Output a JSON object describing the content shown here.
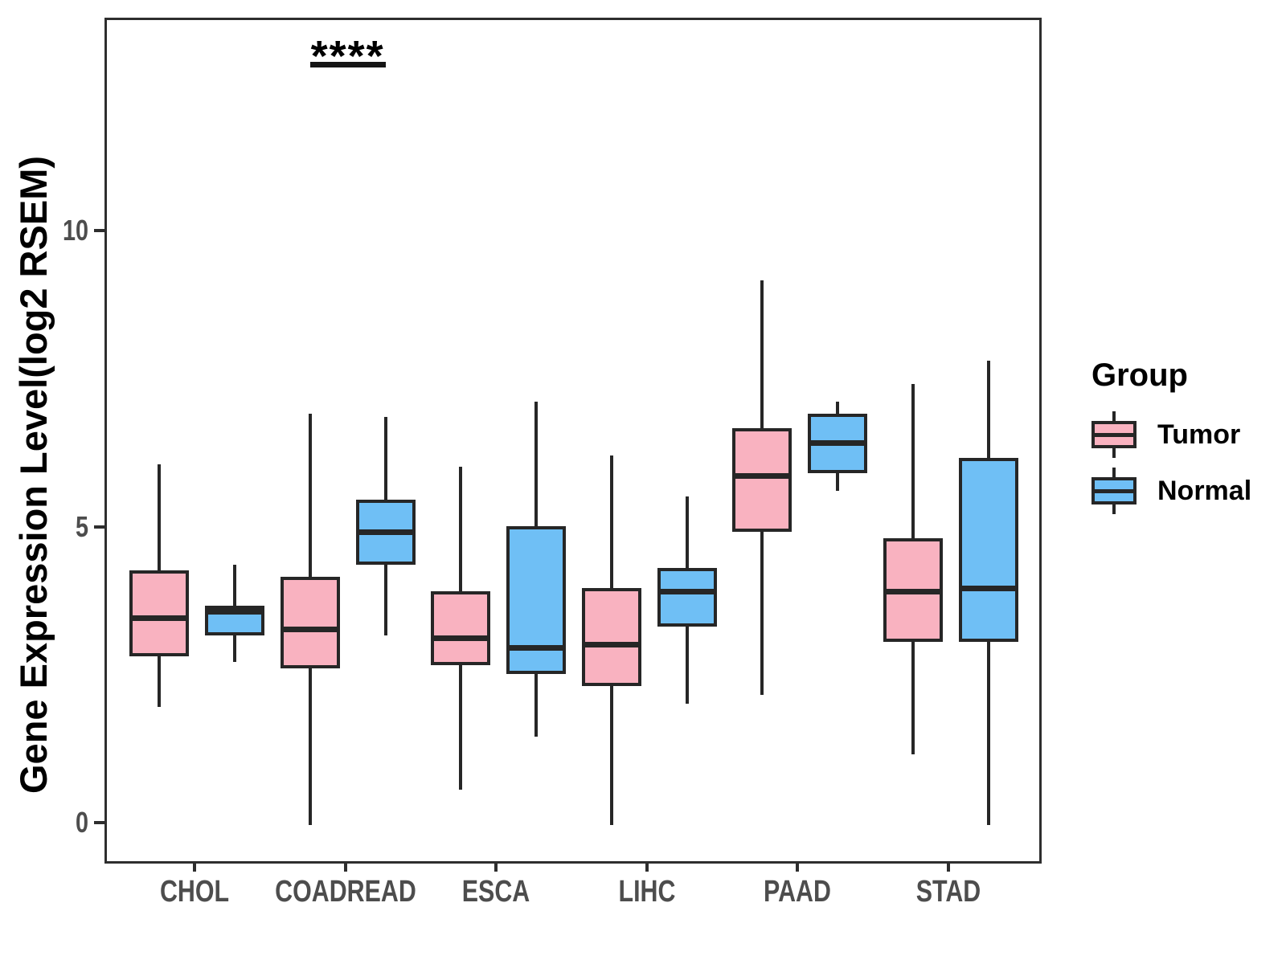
{
  "chart_data": {
    "type": "boxplot",
    "title": "",
    "xlabel": "",
    "ylabel": "Gene Expression Level(log2 RSEM)",
    "categories": [
      "CHOL",
      "COADREAD",
      "ESCA",
      "LIHC",
      "PAAD",
      "STAD"
    ],
    "yticks": [
      0,
      5,
      10
    ],
    "ylim": [
      -0.61,
      13.6
    ],
    "grid": "off",
    "legend": {
      "title": "Group",
      "position": "right",
      "entries": [
        {
          "label": "Tumor",
          "color": "#F9B2C0"
        },
        {
          "label": "Normal",
          "color": "#6FBFF5"
        }
      ]
    },
    "colors": {
      "tumor_fill": "#F9B2C0",
      "normal_fill": "#6FBFF5",
      "stroke": "#262626",
      "axis_text": "#4d4d4d",
      "panel_border": "#2e2e2e"
    },
    "series": [
      {
        "name": "Tumor",
        "boxes": [
          {
            "category": "CHOL",
            "whislo": 2.0,
            "q1": 2.85,
            "med": 3.5,
            "q3": 4.3,
            "whishi": 6.1
          },
          {
            "category": "COADREAD",
            "whislo": 0.0,
            "q1": 2.65,
            "med": 3.3,
            "q3": 4.2,
            "whishi": 6.95
          },
          {
            "category": "ESCA",
            "whislo": 0.6,
            "q1": 2.7,
            "med": 3.15,
            "q3": 3.95,
            "whishi": 6.05
          },
          {
            "category": "LIHC",
            "whislo": 0.0,
            "q1": 2.35,
            "med": 3.05,
            "q3": 4.0,
            "whishi": 6.25
          },
          {
            "category": "PAAD",
            "whislo": 2.2,
            "q1": 4.95,
            "med": 5.9,
            "q3": 6.7,
            "whishi": 9.2
          },
          {
            "category": "STAD",
            "whislo": 1.2,
            "q1": 3.1,
            "med": 3.95,
            "q3": 4.85,
            "whishi": 7.45
          }
        ]
      },
      {
        "name": "Normal",
        "boxes": [
          {
            "category": "CHOL",
            "whislo": 2.75,
            "q1": 3.2,
            "med": 3.6,
            "q3": 3.7,
            "whishi": 4.4
          },
          {
            "category": "COADREAD",
            "whislo": 3.2,
            "q1": 4.4,
            "med": 4.95,
            "q3": 5.5,
            "whishi": 6.9
          },
          {
            "category": "ESCA",
            "whislo": 1.5,
            "q1": 2.55,
            "med": 3.0,
            "q3": 5.05,
            "whishi": 7.15
          },
          {
            "category": "LIHC",
            "whislo": 2.05,
            "q1": 3.35,
            "med": 3.95,
            "q3": 4.35,
            "whishi": 5.55
          },
          {
            "category": "PAAD",
            "whislo": 5.65,
            "q1": 5.95,
            "med": 6.45,
            "q3": 6.95,
            "whishi": 7.15
          },
          {
            "category": "STAD",
            "whislo": 0.0,
            "q1": 3.1,
            "med": 4.0,
            "q3": 6.2,
            "whishi": 7.85
          }
        ]
      }
    ],
    "significance": {
      "label": "****",
      "category": "COADREAD",
      "between": [
        "Tumor",
        "Normal"
      ],
      "bar_y": 12.9
    }
  }
}
